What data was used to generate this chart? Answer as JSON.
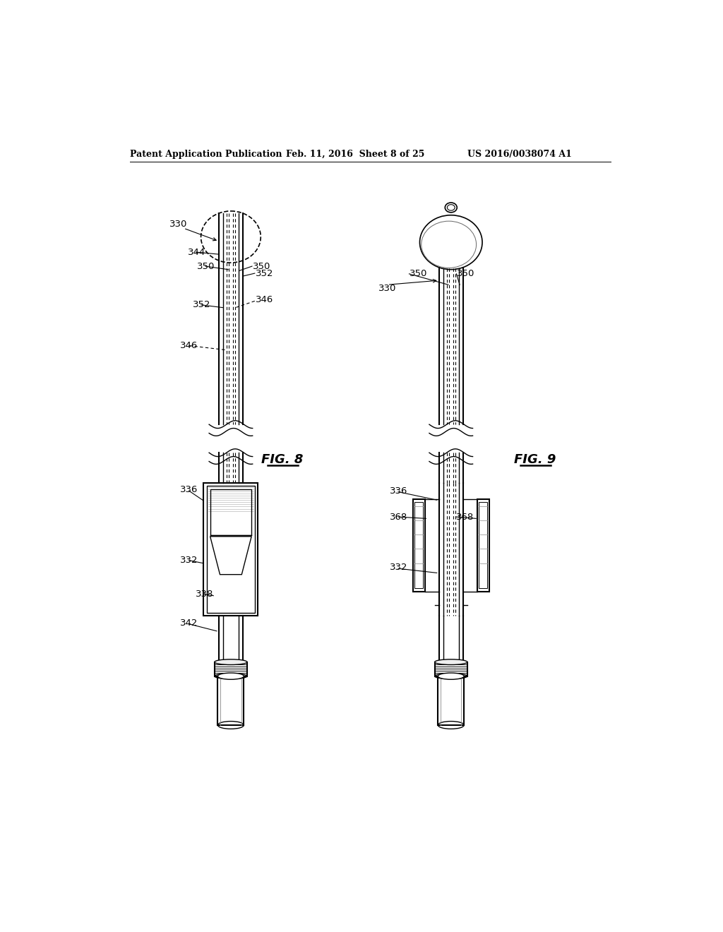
{
  "bg_color": "#ffffff",
  "header_left": "Patent Application Publication",
  "header_mid": "Feb. 11, 2016  Sheet 8 of 25",
  "header_right": "US 2016/0038074 A1",
  "fig8_label": "FIG. 8",
  "fig9_label": "FIG. 9"
}
